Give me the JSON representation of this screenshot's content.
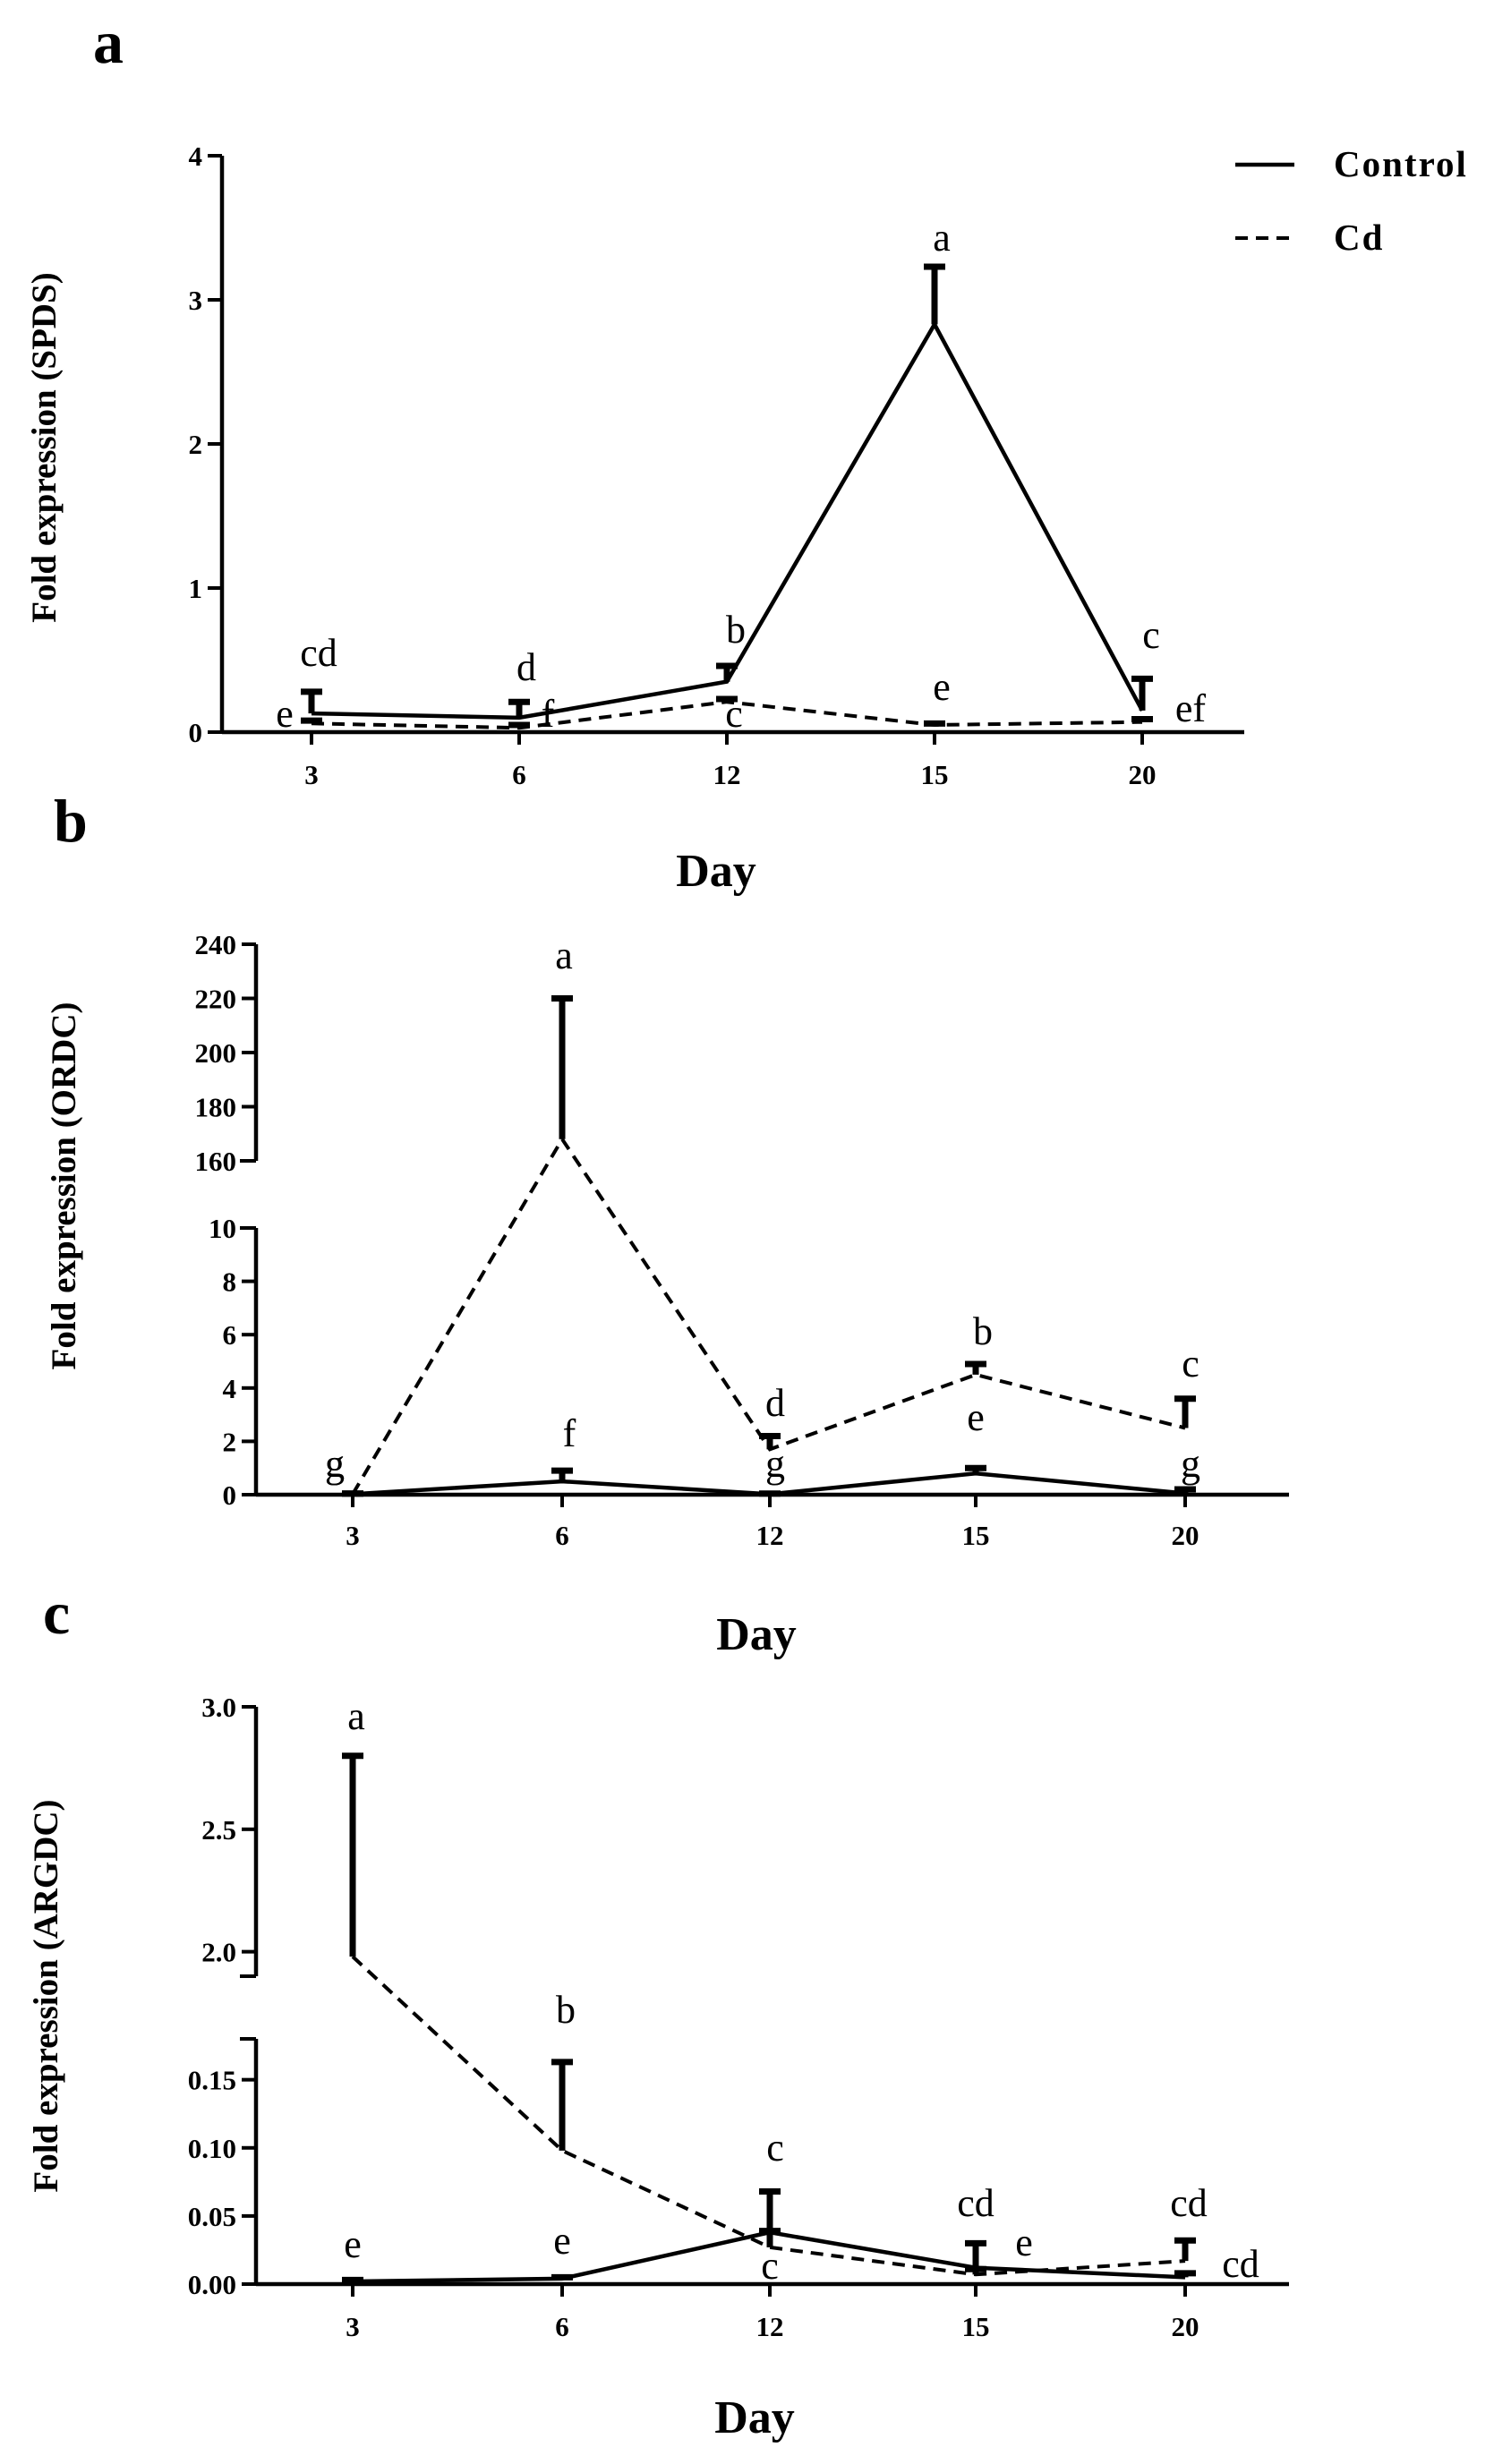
{
  "legend": [
    {
      "name": "Control",
      "style": "solid"
    },
    {
      "name": "Cd",
      "style": "dashed"
    }
  ],
  "chart_data": [
    {
      "panel": "a",
      "type": "line",
      "xlabel": "Day",
      "ylabel": "Fold expression (SPDS)",
      "categories": [
        "3",
        "6",
        "12",
        "15",
        "20"
      ],
      "ylim": [
        0,
        4
      ],
      "yticks": [
        "0",
        "1",
        "2",
        "3",
        "4"
      ],
      "series": [
        {
          "name": "Control",
          "style": "solid",
          "values": [
            0.13,
            0.1,
            0.35,
            2.83,
            0.15
          ],
          "errors": [
            0.15,
            0.11,
            0.11,
            0.4,
            0.22
          ],
          "letters": [
            "cd",
            "d",
            "b",
            "a",
            "c"
          ]
        },
        {
          "name": "Cd",
          "style": "dashed",
          "values": [
            0.06,
            0.03,
            0.21,
            0.05,
            0.07
          ],
          "errors": [
            0.02,
            0.02,
            0.02,
            0.01,
            0.02
          ],
          "letters": [
            "e",
            "f",
            "c",
            "e",
            "ef"
          ]
        }
      ]
    },
    {
      "panel": "b",
      "type": "line",
      "xlabel": "Day",
      "ylabel": "Fold expression (ORDC)",
      "categories": [
        "3",
        "6",
        "12",
        "15",
        "20"
      ],
      "axis_break": {
        "lower": [
          0,
          10
        ],
        "upper": [
          160,
          240
        ]
      },
      "yticks_lower": [
        "0",
        "2",
        "4",
        "6",
        "8",
        "10"
      ],
      "yticks_upper": [
        "160",
        "180",
        "200",
        "220",
        "240"
      ],
      "series": [
        {
          "name": "Control",
          "style": "solid",
          "values": [
            0.02,
            0.5,
            0.02,
            0.8,
            0.05
          ],
          "errors": [
            0.02,
            0.4,
            0.02,
            0.2,
            0.15
          ],
          "letters": [
            "g",
            "f",
            "g",
            "e",
            "g"
          ]
        },
        {
          "name": "Cd",
          "style": "dashed",
          "values": [
            0.02,
            168,
            1.7,
            4.5,
            2.5
          ],
          "errors": [
            0.02,
            52,
            0.5,
            0.4,
            1.1
          ],
          "letters": [
            "g",
            "a",
            "d",
            "b",
            "c"
          ]
        }
      ]
    },
    {
      "panel": "c",
      "type": "line",
      "xlabel": "Day",
      "ylabel": "Fold expression (ARGDC)",
      "categories": [
        "3",
        "6",
        "12",
        "15",
        "20"
      ],
      "axis_break": {
        "lower": [
          0,
          0.18
        ],
        "upper": [
          1.9,
          3.0
        ]
      },
      "yticks_lower": [
        "0.00",
        "0.05",
        "0.10",
        "0.15"
      ],
      "yticks_upper": [
        "2.0",
        "2.5",
        "3.0"
      ],
      "series": [
        {
          "name": "Control",
          "style": "solid",
          "values": [
            0.002,
            0.004,
            0.038,
            0.012,
            0.005
          ],
          "errors": [
            0.001,
            0.001,
            0.03,
            0.018,
            0.003
          ],
          "letters": [
            "e",
            "e",
            "c",
            "cd",
            "cd"
          ]
        },
        {
          "name": "Cd",
          "style": "dashed",
          "values": [
            1.98,
            0.098,
            0.027,
            0.007,
            0.017
          ],
          "errors": [
            0.82,
            0.065,
            0.012,
            0.004,
            0.015
          ],
          "letters": [
            "a",
            "b",
            "c",
            "e",
            "cd"
          ]
        }
      ]
    }
  ]
}
